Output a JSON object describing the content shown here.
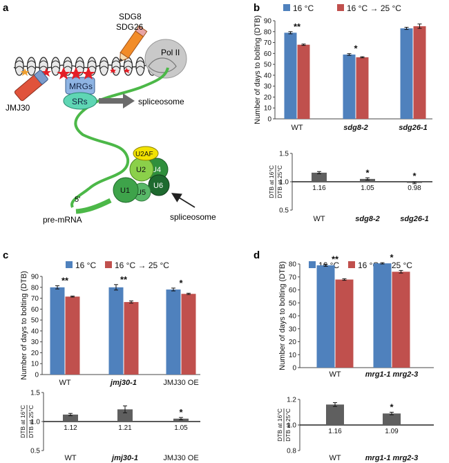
{
  "panels": [
    {
      "letter": "a"
    },
    {
      "letter": "b"
    },
    {
      "letter": "c"
    },
    {
      "letter": "d"
    }
  ],
  "diagram": {
    "labels": {
      "sdg8": "SDG8",
      "sdg26": "SDG26",
      "pol2": "Pol II",
      "mrgs": "MRGs",
      "srs": "SRs",
      "jmj30": "JMJ30",
      "spliceosome_top": "spliceosome",
      "u2af": "U2AF",
      "u2": "U2",
      "u4": "U4",
      "u6": "U6",
      "u1": "U1",
      "u5": "U5",
      "five_prime": "5'",
      "premrna": "pre-mRNA",
      "spliceosome_bottom": "spliceosome"
    },
    "colors": {
      "green": "#4cb848",
      "dark_green": "#1e7a35",
      "yellow": "#f2e200",
      "mrg_blue": "#8eb4e3",
      "sr_teal": "#5fd6b4",
      "red_star": "#e41e26",
      "orange_star": "#f0a030",
      "pencil_orange": "#f28c28",
      "eraser_red": "#e0533b"
    }
  },
  "legend": {
    "series_a": "16 °C",
    "series_b": "16 °C → 25 °C"
  },
  "colors": {
    "blue": "#4f81bd",
    "red": "#c0504d",
    "gray": "#5f5f5f"
  },
  "chart_data": [
    {
      "panel": "b",
      "type": "bar",
      "ylabel": "Number of days to bolting (DTB)",
      "ylim": [
        0,
        90
      ],
      "yticks": [
        "0",
        "10",
        "20",
        "30",
        "40",
        "50",
        "60",
        "70",
        "80",
        "90"
      ],
      "categories": [
        "WT",
        "sdg8-2",
        "sdg26-1"
      ],
      "series": [
        {
          "name": "16 °C",
          "values": [
            79,
            59,
            83
          ],
          "errors": [
            1,
            0.8,
            1
          ]
        },
        {
          "name": "16 °C → 25 °C",
          "values": [
            68,
            56.5,
            85
          ],
          "errors": [
            0.6,
            0.5,
            2
          ]
        }
      ],
      "significance": [
        "**",
        "*",
        ""
      ]
    },
    {
      "panel": "b",
      "type": "bar",
      "ylabel_top": "DTB at 16°C",
      "ylabel_bottom": "DTB at 25°C",
      "ylim": [
        0.5,
        1.5
      ],
      "yticks": [
        "0.5",
        "1.0",
        "1.5"
      ],
      "categories": [
        "WT",
        "sdg8-2",
        "sdg26-1"
      ],
      "values": [
        1.16,
        1.05,
        0.98
      ],
      "errors": [
        0.02,
        0.02,
        0.015
      ],
      "labels": [
        "1.16",
        "1.05",
        "0.98"
      ],
      "significance": [
        "",
        "*",
        "*"
      ]
    },
    {
      "panel": "c",
      "type": "bar",
      "ylabel": "Number of days to bolting (DTB)",
      "ylim": [
        0,
        90
      ],
      "yticks": [
        "0",
        "10",
        "20",
        "30",
        "40",
        "50",
        "60",
        "70",
        "80",
        "90"
      ],
      "categories": [
        "WT",
        "jmj30-1",
        "JMJ30 OE"
      ],
      "series": [
        {
          "name": "16 °C",
          "values": [
            80,
            80,
            78
          ],
          "errors": [
            1.5,
            2.5,
            1.3
          ]
        },
        {
          "name": "16 °C → 25 °C",
          "values": [
            71.5,
            66.5,
            74
          ],
          "errors": [
            0.5,
            1,
            0.6
          ]
        }
      ],
      "significance": [
        "**",
        "**",
        "*"
      ]
    },
    {
      "panel": "c",
      "type": "bar",
      "ylabel_top": "DTB at 16°C",
      "ylabel_bottom": "DTB at 25°C",
      "ylim": [
        0.5,
        1.5
      ],
      "yticks": [
        "0.5",
        "1.0",
        "1.5"
      ],
      "categories": [
        "WT",
        "jmj30-1",
        "JMJ30 OE"
      ],
      "values": [
        1.12,
        1.21,
        1.05
      ],
      "errors": [
        0.02,
        0.06,
        0.02
      ],
      "labels": [
        "1.12",
        "1.21",
        "1.05"
      ],
      "significance": [
        "",
        "",
        "*"
      ]
    },
    {
      "panel": "d",
      "type": "bar",
      "ylabel": "Number of days to bolting (DTB)",
      "ylim": [
        0,
        80
      ],
      "yticks": [
        "0",
        "10",
        "20",
        "30",
        "40",
        "50",
        "60",
        "70",
        "80"
      ],
      "categories": [
        "WT",
        "mrg1-1 mrg2-3"
      ],
      "series": [
        {
          "name": "16 °C",
          "values": [
            79,
            80.5
          ],
          "errors": [
            0.8,
            0.5
          ]
        },
        {
          "name": "16 °C → 25 °C",
          "values": [
            68,
            74
          ],
          "errors": [
            0.6,
            1
          ]
        }
      ],
      "significance": [
        "**",
        "*"
      ]
    },
    {
      "panel": "d",
      "type": "bar",
      "ylabel_top": "DTB at 16°C",
      "ylabel_bottom": "DTB at 25°C",
      "ylim": [
        0.8,
        1.2
      ],
      "yticks": [
        "0.8",
        "1.0",
        "1.2"
      ],
      "categories": [
        "WT",
        "mrg1-1 mrg2-3"
      ],
      "values": [
        1.16,
        1.09
      ],
      "errors": [
        0.015,
        0.01
      ],
      "labels": [
        "1.16",
        "1.09"
      ],
      "significance": [
        "",
        "*"
      ]
    }
  ]
}
